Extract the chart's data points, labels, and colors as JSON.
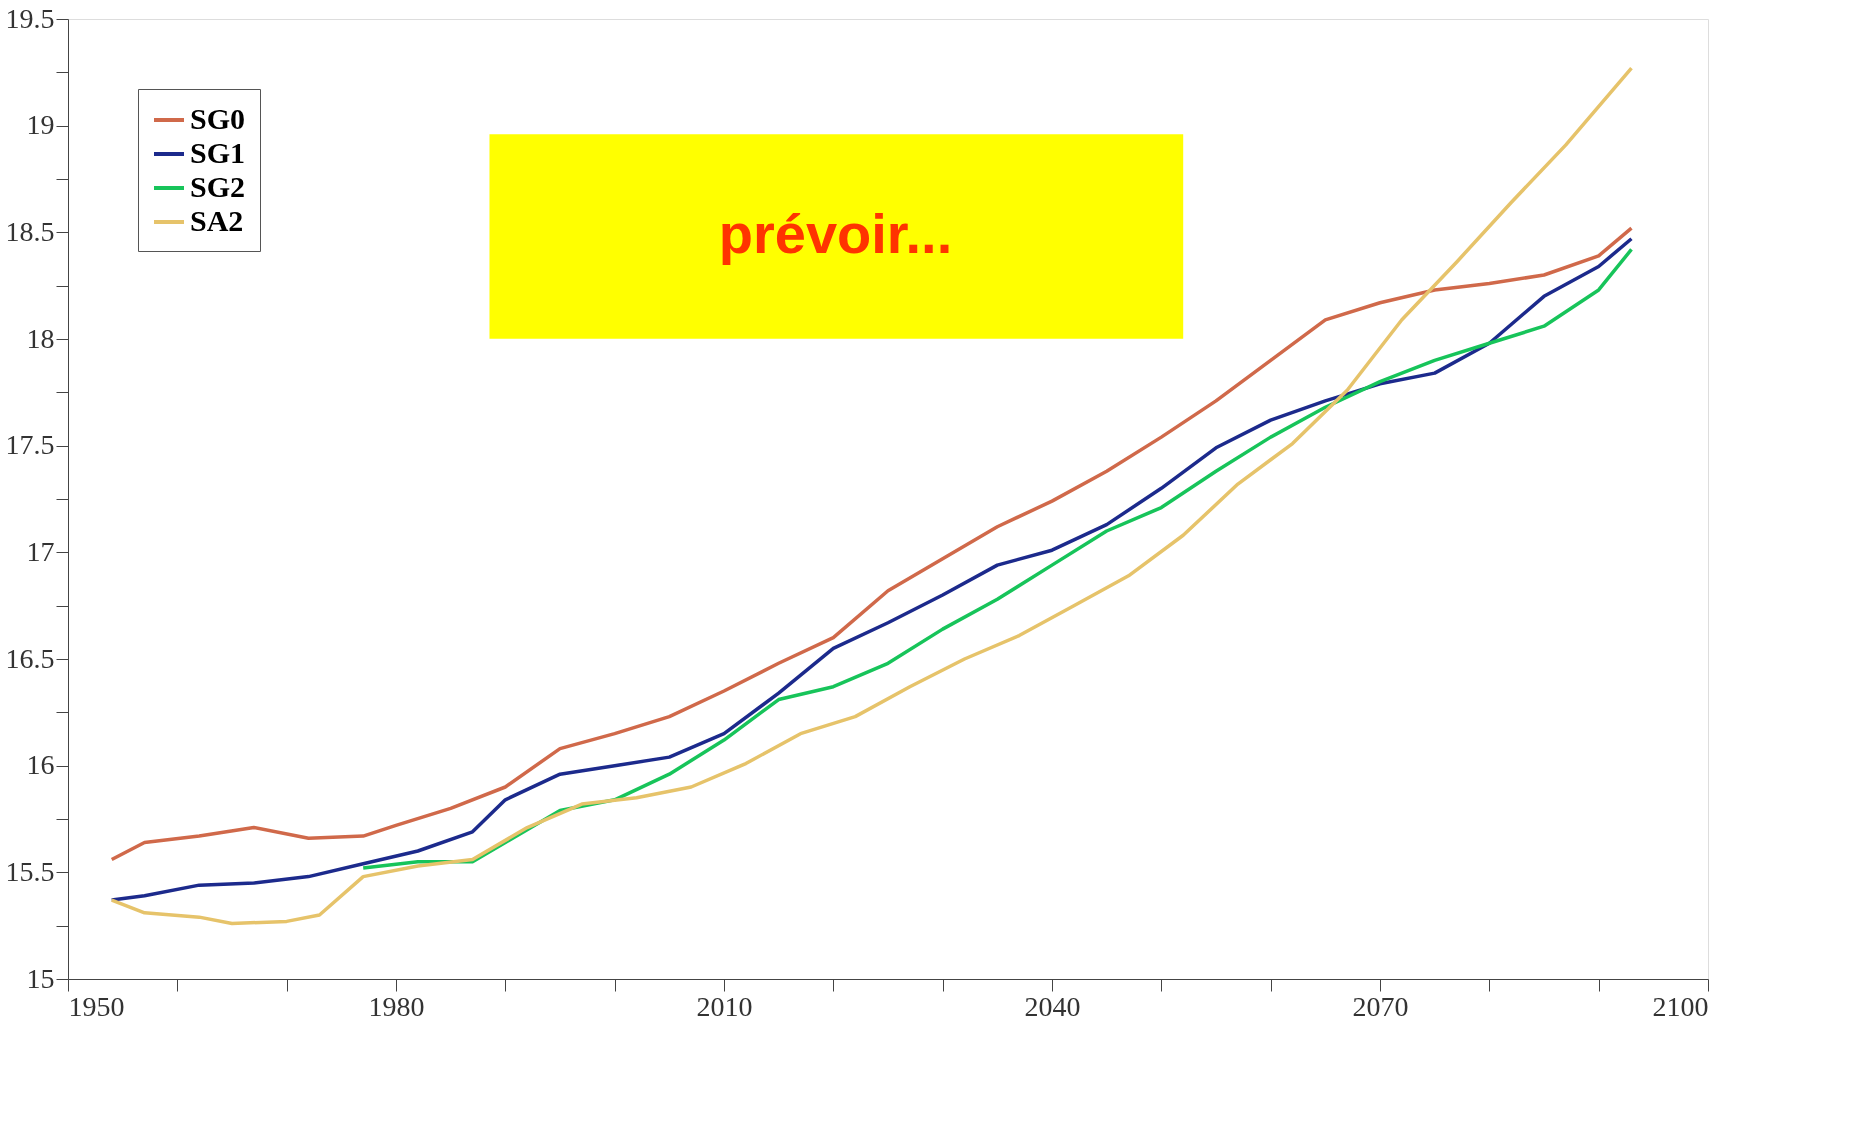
{
  "chart_data": {
    "type": "line",
    "annotations": [
      "prévoir..."
    ],
    "xlim": [
      1950,
      2100
    ],
    "xticks": [
      1950,
      {
        "value": 1960,
        "label": null
      },
      {
        "value": 1970,
        "label": null
      },
      1980,
      {
        "value": 1990,
        "label": null
      },
      {
        "value": 2000,
        "label": null
      },
      2010,
      {
        "value": 2020,
        "label": null
      },
      {
        "value": 2030,
        "label": null
      },
      2040,
      {
        "value": 2050,
        "label": null
      },
      {
        "value": 2060,
        "label": null
      },
      2070,
      {
        "value": 2080,
        "label": null
      },
      {
        "value": 2090,
        "label": null
      },
      2100
    ],
    "ylim": [
      15,
      19.5
    ],
    "yticks": [
      15,
      {
        "value": 15.25,
        "label": null
      },
      15.5,
      {
        "value": 15.75,
        "label": null
      },
      16,
      {
        "value": 16.25,
        "label": null
      },
      16.5,
      {
        "value": 16.75,
        "label": null
      },
      17,
      {
        "value": 17.25,
        "label": null
      },
      17.5,
      {
        "value": 17.75,
        "label": null
      },
      18,
      {
        "value": 18.25,
        "label": null
      },
      18.5,
      {
        "value": 18.75,
        "label": null
      },
      19,
      {
        "value": 19.25,
        "label": null
      },
      19.5
    ],
    "grid": false,
    "legend": "top left",
    "marker": "none",
    "line_style": "solid",
    "series": [
      {
        "name": "SG0",
        "color": "#d0694a",
        "x": [
          1954,
          1957,
          1962,
          1967,
          1972,
          1977,
          1980,
          1985,
          1990,
          1995,
          2000,
          2005,
          2010,
          2015,
          2020,
          2025,
          2030,
          2035,
          2040,
          2045,
          2050,
          2055,
          2060,
          2065,
          2070,
          2075,
          2080,
          2085,
          2090,
          2093
        ],
        "values": [
          15.56,
          15.64,
          15.67,
          15.71,
          15.66,
          15.67,
          15.72,
          15.8,
          15.9,
          16.08,
          16.15,
          16.23,
          16.35,
          16.48,
          16.6,
          16.82,
          16.97,
          17.12,
          17.24,
          17.38,
          17.54,
          17.71,
          17.9,
          18.09,
          18.17,
          18.23,
          18.26,
          18.3,
          18.39,
          18.52
        ]
      },
      {
        "name": "SG1",
        "color": "#1c2a8c",
        "x": [
          1954,
          1957,
          1962,
          1967,
          1972,
          1977,
          1982,
          1987,
          1990,
          1995,
          2000,
          2005,
          2010,
          2015,
          2020,
          2025,
          2030,
          2035,
          2040,
          2045,
          2050,
          2055,
          2060,
          2065,
          2070,
          2075,
          2080,
          2085,
          2090,
          2093
        ],
        "values": [
          15.37,
          15.39,
          15.44,
          15.45,
          15.48,
          15.54,
          15.6,
          15.69,
          15.84,
          15.96,
          16.0,
          16.04,
          16.15,
          16.34,
          16.55,
          16.67,
          16.8,
          16.94,
          17.01,
          17.13,
          17.3,
          17.49,
          17.62,
          17.71,
          17.79,
          17.84,
          17.98,
          18.2,
          18.34,
          18.47
        ]
      },
      {
        "name": "SG2",
        "color": "#17c45a",
        "x": [
          1977,
          1982,
          1987,
          1990,
          1995,
          2000,
          2005,
          2010,
          2015,
          2020,
          2025,
          2030,
          2035,
          2040,
          2045,
          2050,
          2055,
          2060,
          2065,
          2070,
          2075,
          2080,
          2085,
          2090,
          2093
        ],
        "values": [
          15.52,
          15.55,
          15.55,
          15.64,
          15.79,
          15.84,
          15.96,
          16.12,
          16.31,
          16.37,
          16.48,
          16.64,
          16.78,
          16.94,
          17.1,
          17.21,
          17.38,
          17.54,
          17.68,
          17.8,
          17.9,
          17.98,
          18.06,
          18.23,
          18.42
        ]
      },
      {
        "name": "SA2",
        "color": "#e6c36a",
        "x": [
          1954,
          1957,
          1962,
          1965,
          1970,
          1973,
          1977,
          1982,
          1987,
          1992,
          1997,
          2002,
          2007,
          2012,
          2017,
          2022,
          2027,
          2032,
          2037,
          2042,
          2047,
          2052,
          2057,
          2062,
          2067,
          2072,
          2077,
          2082,
          2087,
          2093
        ],
        "values": [
          15.37,
          15.31,
          15.29,
          15.26,
          15.27,
          15.3,
          15.48,
          15.53,
          15.56,
          15.71,
          15.82,
          15.85,
          15.9,
          16.01,
          16.15,
          16.23,
          16.37,
          16.5,
          16.61,
          16.75,
          16.89,
          17.08,
          17.32,
          17.51,
          17.76,
          18.09,
          18.36,
          18.64,
          18.91,
          19.27
        ]
      }
    ]
  }
}
